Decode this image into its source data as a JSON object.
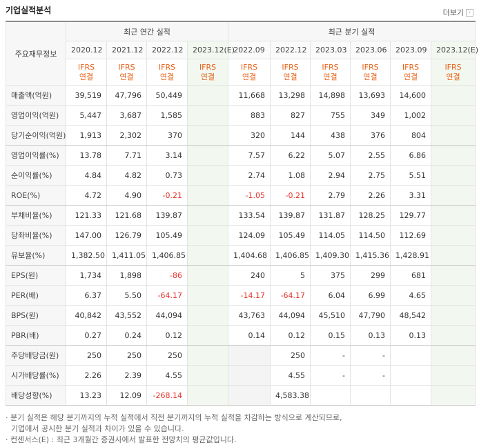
{
  "header": {
    "title": "기업실적분석",
    "more": "더보기"
  },
  "table": {
    "corner": "주요재무정보",
    "sections": [
      {
        "label": "최근 연간 실적",
        "columns": [
          {
            "period": "2020.12",
            "standard": "IFRS",
            "basis": "연결"
          },
          {
            "period": "2021.12",
            "standard": "IFRS",
            "basis": "연결"
          },
          {
            "period": "2022.12",
            "standard": "IFRS",
            "basis": "연결"
          },
          {
            "period": "2023.12(E)",
            "standard": "IFRS",
            "basis": "연결"
          }
        ]
      },
      {
        "label": "최근 분기 실적",
        "columns": [
          {
            "period": "2022.09",
            "standard": "IFRS",
            "basis": "연결"
          },
          {
            "period": "2022.12",
            "standard": "IFRS",
            "basis": "연결"
          },
          {
            "period": "2023.03",
            "standard": "IFRS",
            "basis": "연결"
          },
          {
            "period": "2023.06",
            "standard": "IFRS",
            "basis": "연결"
          },
          {
            "period": "2023.09",
            "standard": "IFRS",
            "basis": "연결"
          },
          {
            "period": "2023.12(E)",
            "standard": "IFRS",
            "basis": "연결"
          }
        ]
      }
    ],
    "groups": [
      {
        "rows": [
          {
            "label": "매출액(억원)",
            "values": [
              "39,519",
              "47,796",
              "50,449",
              null,
              "11,668",
              "13,298",
              "14,898",
              "13,693",
              "14,600",
              null
            ]
          },
          {
            "label": "영업이익(억원)",
            "values": [
              "5,447",
              "3,687",
              "1,585",
              null,
              "883",
              "827",
              "755",
              "349",
              "1,002",
              null
            ]
          },
          {
            "label": "당기순이익(억원)",
            "values": [
              "1,913",
              "2,302",
              "370",
              null,
              "320",
              "144",
              "438",
              "376",
              "804",
              null
            ]
          }
        ]
      },
      {
        "rows": [
          {
            "label": "영업이익률(%)",
            "values": [
              "13.78",
              "7.71",
              "3.14",
              null,
              "7.57",
              "6.22",
              "5.07",
              "2.55",
              "6.86",
              null
            ]
          },
          {
            "label": "순이익률(%)",
            "values": [
              "4.84",
              "4.82",
              "0.73",
              null,
              "2.74",
              "1.08",
              "2.94",
              "2.75",
              "5.51",
              null
            ]
          },
          {
            "label": "ROE(%)",
            "values": [
              "4.72",
              "4.90",
              "-0.21",
              null,
              "-1.05",
              "-0.21",
              "2.79",
              "2.26",
              "3.31",
              null
            ]
          }
        ]
      },
      {
        "rows": [
          {
            "label": "부채비율(%)",
            "values": [
              "121.33",
              "121.68",
              "139.87",
              null,
              "133.54",
              "139.87",
              "131.87",
              "128.25",
              "129.77",
              null
            ]
          },
          {
            "label": "당좌비율(%)",
            "values": [
              "147.00",
              "126.79",
              "105.49",
              null,
              "124.09",
              "105.49",
              "114.05",
              "114.50",
              "112.69",
              null
            ]
          },
          {
            "label": "유보율(%)",
            "values": [
              "1,382.50",
              "1,411.05",
              "1,406.85",
              null,
              "1,404.68",
              "1,406.85",
              "1,409.30",
              "1,415.36",
              "1,428.91",
              null
            ]
          }
        ]
      },
      {
        "rows": [
          {
            "label": "EPS(원)",
            "values": [
              "1,734",
              "1,898",
              "-86",
              null,
              "240",
              "5",
              "375",
              "299",
              "681",
              null
            ]
          },
          {
            "label": "PER(배)",
            "values": [
              "6.37",
              "5.50",
              "-64.17",
              null,
              "-14.17",
              "-64.17",
              "6.04",
              "6.99",
              "4.65",
              null
            ]
          },
          {
            "label": "BPS(원)",
            "values": [
              "40,842",
              "43,552",
              "44,094",
              null,
              "43,763",
              "44,094",
              "45,510",
              "47,790",
              "48,542",
              null
            ]
          },
          {
            "label": "PBR(배)",
            "values": [
              "0.27",
              "0.24",
              "0.12",
              null,
              "0.14",
              "0.12",
              "0.15",
              "0.13",
              "0.13",
              null
            ]
          }
        ]
      },
      {
        "rows": [
          {
            "label": "주당배당금(원)",
            "values": [
              "250",
              "250",
              "250",
              null,
              null,
              "250",
              "-",
              "-",
              null,
              null
            ]
          },
          {
            "label": "시가배당률(%)",
            "values": [
              "2.26",
              "2.39",
              "4.55",
              null,
              null,
              "4.55",
              "-",
              "-",
              null,
              null
            ]
          },
          {
            "label": "배당성향(%)",
            "values": [
              "13.23",
              "12.09",
              "-268.14",
              null,
              null,
              "4,583.38",
              null,
              null,
              null,
              null
            ]
          }
        ]
      }
    ]
  },
  "notes": [
    [
      "분기 실적은 해당 분기까지의 누적 실적에서 직전 분기까지의 누적 실적을 차감하는 방식으로 계산되므로,",
      "기업에서 공시한 분기 실적과 차이가 있을 수 있습니다."
    ],
    [
      "컨센서스(E) : 최근 3개월간 증권사에서 발표한 전망치의 평균값입니다."
    ]
  ]
}
